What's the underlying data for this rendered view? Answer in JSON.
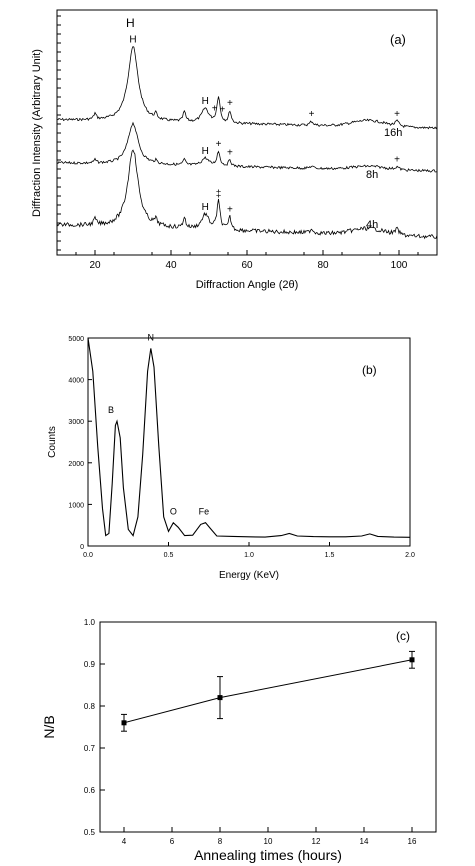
{
  "chart_data": [
    {
      "panel": "(a)",
      "type": "line",
      "xlabel": "Diffraction Angle (2θ)",
      "ylabel": "Diffraction Intensity (Arbitrary Unit)",
      "xlim": [
        10,
        110
      ],
      "xticks": [
        20,
        40,
        60,
        80,
        100
      ],
      "y_tick_labels_shown": false,
      "grid": false,
      "series": [
        {
          "name": "16h",
          "peaks": [
            {
              "x": 30,
              "label": "H"
            },
            {
              "x": 49,
              "label": "H"
            },
            {
              "x": 51.5,
              "label": "+"
            },
            {
              "x": 53.5,
              "label": "+"
            },
            {
              "x": 55.5,
              "label": "+"
            },
            {
              "x": 77,
              "label": "+"
            },
            {
              "x": 99.5,
              "label": "+"
            }
          ]
        },
        {
          "name": "8h",
          "peaks": [
            {
              "x": 30,
              "label": ""
            },
            {
              "x": 49,
              "label": "H"
            },
            {
              "x": 52.5,
              "label": "+"
            },
            {
              "x": 55.5,
              "label": "+"
            },
            {
              "x": 99.5,
              "label": "+"
            }
          ]
        },
        {
          "name": "4h",
          "peaks": [
            {
              "x": 30,
              "label": ""
            },
            {
              "x": 49,
              "label": "H"
            },
            {
              "x": 52.5,
              "label": "‡"
            },
            {
              "x": 55.5,
              "label": "+"
            }
          ]
        }
      ]
    },
    {
      "panel": "(b)",
      "type": "line",
      "xlabel": "Energy (KeV)",
      "ylabel": "Counts",
      "xlim": [
        0.0,
        2.0
      ],
      "ylim": [
        0,
        5000
      ],
      "xticks": [
        "0.0",
        "0.5",
        "1.0",
        "1.5",
        "2.0"
      ],
      "yticks": [
        "0",
        "1000",
        "2000",
        "3000",
        "4000",
        "5000"
      ],
      "grid": false,
      "points": [
        [
          0.0,
          5000
        ],
        [
          0.03,
          4200
        ],
        [
          0.06,
          2400
        ],
        [
          0.09,
          900
        ],
        [
          0.11,
          250
        ],
        [
          0.13,
          300
        ],
        [
          0.15,
          1500
        ],
        [
          0.17,
          2900
        ],
        [
          0.18,
          3000
        ],
        [
          0.2,
          2600
        ],
        [
          0.22,
          1400
        ],
        [
          0.25,
          400
        ],
        [
          0.28,
          250
        ],
        [
          0.31,
          700
        ],
        [
          0.34,
          2200
        ],
        [
          0.37,
          4200
        ],
        [
          0.39,
          4750
        ],
        [
          0.41,
          4300
        ],
        [
          0.44,
          2400
        ],
        [
          0.47,
          700
        ],
        [
          0.5,
          350
        ],
        [
          0.53,
          560
        ],
        [
          0.56,
          450
        ],
        [
          0.6,
          250
        ],
        [
          0.65,
          260
        ],
        [
          0.7,
          520
        ],
        [
          0.73,
          560
        ],
        [
          0.76,
          420
        ],
        [
          0.8,
          240
        ],
        [
          0.9,
          230
        ],
        [
          1.0,
          220
        ],
        [
          1.1,
          215
        ],
        [
          1.2,
          250
        ],
        [
          1.25,
          300
        ],
        [
          1.3,
          240
        ],
        [
          1.4,
          225
        ],
        [
          1.5,
          220
        ],
        [
          1.6,
          220
        ],
        [
          1.7,
          240
        ],
        [
          1.75,
          290
        ],
        [
          1.8,
          230
        ],
        [
          1.9,
          215
        ],
        [
          2.0,
          210
        ]
      ],
      "annotations": [
        {
          "text": "B",
          "x": 0.18,
          "y": 3000
        },
        {
          "text": "N",
          "x": 0.39,
          "y": 4750
        },
        {
          "text": "O",
          "x": 0.53,
          "y": 560
        },
        {
          "text": "Fe",
          "x": 0.72,
          "y": 560
        }
      ]
    },
    {
      "panel": "(c)",
      "type": "scatter",
      "xlabel": "Annealing times (hours)",
      "ylabel": "N/B",
      "xlim": [
        3,
        17
      ],
      "ylim": [
        0.5,
        1.0
      ],
      "xticks": [
        "4",
        "6",
        "8",
        "10",
        "12",
        "14",
        "16"
      ],
      "yticks": [
        "0.5",
        "0.6",
        "0.7",
        "0.8",
        "0.9",
        "1.0"
      ],
      "grid": false,
      "x": [
        4,
        8,
        16
      ],
      "y": [
        0.76,
        0.82,
        0.91
      ],
      "error": [
        0.02,
        0.05,
        0.02
      ]
    }
  ],
  "panels": {
    "a": {
      "tag": "(a)",
      "xlabel": "Diffraction Angle (2θ)",
      "ylabel": "Diffraction Intensity (Arbitrary Unit)",
      "xticks": [
        "20",
        "40",
        "60",
        "80",
        "100"
      ],
      "series_labels": [
        "16h",
        "8h",
        "4h"
      ],
      "top_label": "H"
    },
    "b": {
      "tag": "(b)",
      "xlabel": "Energy (KeV)",
      "ylabel": "Counts",
      "xticks": [
        "0.0",
        "0.5",
        "1.0",
        "1.5",
        "2.0"
      ],
      "yticks": [
        "0",
        "1000",
        "2000",
        "3000",
        "4000",
        "5000"
      ],
      "peak_labels": [
        "B",
        "N",
        "O",
        "Fe"
      ]
    },
    "c": {
      "tag": "(c)",
      "xlabel": "Annealing times (hours)",
      "ylabel": "N/B",
      "xticks": [
        "4",
        "6",
        "8",
        "10",
        "12",
        "14",
        "16"
      ],
      "yticks": [
        "0.5",
        "0.6",
        "0.7",
        "0.8",
        "0.9",
        "1.0"
      ]
    }
  }
}
